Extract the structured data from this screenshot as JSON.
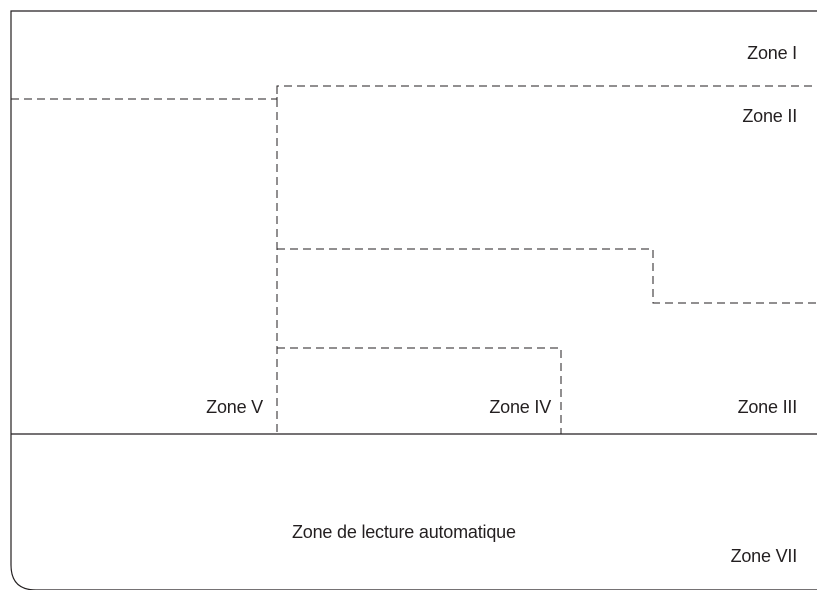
{
  "zones": {
    "zone_1": "Zone I",
    "zone_2": "Zone II",
    "zone_3": "Zone III",
    "zone_4": "Zone IV",
    "zone_5": "Zone V",
    "zone_7": "Zone VII",
    "automatic_reading": "Zone de lecture automatique"
  },
  "colors": {
    "line": "#231f20",
    "background": "#ffffff"
  }
}
